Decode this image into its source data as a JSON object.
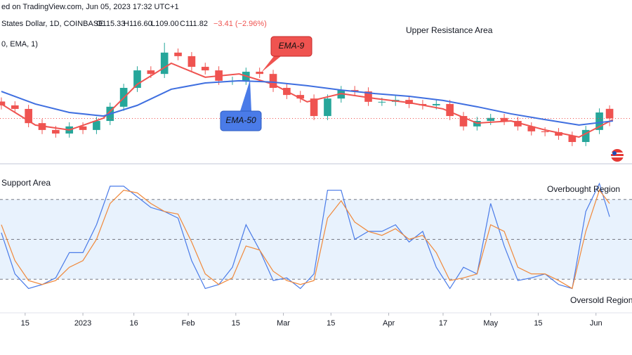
{
  "header": {
    "line1": "ed on TradingView.com, Jun 05, 2023 17:32 UTC+1",
    "symbol": "States Dollar, 1D, COINBASE",
    "ohlc": [
      "O115.33",
      "H116.60",
      "L109.00",
      "C111.82"
    ],
    "change": "−3.41 (−2.96%)",
    "indicator": "0, EMA, 1)"
  },
  "chart_data": [
    {
      "type": "candlestick",
      "x": [
        -24,
        -20,
        -16,
        -12,
        -8,
        -4,
        0,
        4,
        8,
        12,
        16,
        20,
        24,
        28,
        32,
        36,
        40,
        44,
        48,
        52,
        56,
        60,
        64,
        68,
        72,
        76,
        80,
        84,
        88,
        92,
        96,
        100,
        104,
        108,
        112,
        116,
        120,
        124,
        128,
        132,
        136,
        140,
        144,
        148,
        152,
        155
      ],
      "open": [
        118.0,
        116.6,
        115.3,
        110.1,
        107.6,
        106.3,
        108.9,
        107.6,
        110.9,
        116.1,
        123.0,
        129.4,
        128.1,
        135.9,
        134.6,
        130.7,
        129.4,
        125.6,
        125.6,
        128.9,
        128.1,
        123.0,
        120.4,
        119.1,
        112.7,
        119.1,
        122.2,
        121.7,
        117.9,
        117.9,
        118.6,
        117.1,
        116.6,
        117.1,
        112.7,
        108.9,
        110.9,
        112.0,
        110.9,
        108.9,
        107.1,
        106.8,
        105.5,
        103.2,
        107.6,
        115.33
      ],
      "high": [
        119.5,
        118.1,
        116.8,
        111.6,
        109.1,
        110.4,
        110.4,
        112.4,
        117.6,
        124.5,
        130.9,
        130.9,
        139.5,
        137.4,
        136.1,
        132.2,
        130.9,
        127.1,
        130.4,
        130.4,
        129.6,
        124.5,
        121.9,
        120.6,
        120.6,
        123.7,
        123.7,
        123.2,
        119.4,
        120.1,
        120.1,
        118.6,
        118.6,
        118.6,
        114.2,
        112.4,
        113.5,
        113.5,
        112.4,
        110.4,
        108.6,
        108.3,
        107.0,
        109.1,
        115.5,
        116.6
      ],
      "low": [
        115.1,
        113.8,
        108.6,
        106.1,
        104.8,
        104.8,
        106.1,
        106.1,
        109.4,
        114.6,
        121.5,
        126.6,
        126.6,
        133.1,
        129.2,
        127.9,
        124.1,
        124.1,
        124.1,
        126.6,
        121.5,
        118.9,
        117.6,
        111.2,
        111.2,
        117.6,
        120.2,
        116.4,
        116.4,
        116.4,
        115.6,
        115.1,
        115.1,
        111.2,
        107.4,
        107.4,
        109.4,
        109.4,
        107.4,
        105.6,
        105.3,
        104.0,
        101.7,
        101.7,
        106.1,
        109.0
      ],
      "close": [
        116.6,
        115.3,
        110.1,
        107.6,
        106.3,
        108.9,
        107.6,
        110.9,
        116.1,
        123.0,
        129.4,
        128.1,
        135.9,
        134.6,
        130.7,
        129.4,
        125.6,
        125.6,
        128.9,
        128.1,
        123.0,
        120.4,
        119.1,
        112.7,
        119.1,
        122.2,
        121.7,
        117.9,
        117.9,
        118.6,
        117.1,
        116.6,
        117.1,
        112.7,
        108.9,
        110.9,
        112.0,
        110.9,
        108.9,
        107.1,
        106.8,
        105.5,
        103.2,
        107.6,
        114.0,
        111.82
      ],
      "up_color": "#26a69a",
      "down_color": "#ef5350",
      "lines": [
        {
          "name": "EMA-9",
          "color": "#ef5350",
          "x": [
            -24,
            -14,
            -4,
            6,
            16,
            26,
            36,
            46,
            56,
            66,
            76,
            86,
            96,
            106,
            116,
            126,
            136,
            146,
            156
          ],
          "values": [
            117.1,
            109.4,
            107.6,
            111.9,
            124.3,
            132.0,
            126.9,
            128.1,
            124.3,
            117.9,
            120.9,
            119.1,
            117.6,
            115.3,
            110.1,
            110.9,
            107.6,
            105.0,
            111.4
          ]
        },
        {
          "name": "EMA-50",
          "color": "#3f6fe0",
          "x": [
            -24,
            -14,
            -4,
            6,
            16,
            26,
            36,
            46,
            56,
            66,
            76,
            86,
            96,
            106,
            116,
            126,
            136,
            146,
            156
          ],
          "values": [
            121.7,
            117.1,
            114.0,
            112.7,
            116.6,
            122.5,
            124.8,
            125.6,
            125.1,
            123.8,
            122.2,
            120.9,
            119.9,
            118.4,
            116.1,
            113.5,
            111.4,
            109.4,
            110.9
          ]
        }
      ],
      "annotations": [
        "Upper Resistance Area"
      ],
      "xlim": [
        -24.4,
        161.6
      ],
      "ylim": [
        96,
        150
      ]
    },
    {
      "type": "line",
      "x": [
        -24,
        -20,
        -16,
        -12,
        -8,
        -4,
        0,
        4,
        8,
        12,
        16,
        20,
        24,
        28,
        32,
        36,
        40,
        44,
        48,
        52,
        56,
        60,
        64,
        68,
        72,
        76,
        80,
        84,
        88,
        92,
        96,
        100,
        104,
        108,
        112,
        116,
        120,
        124,
        128,
        132,
        136,
        140,
        144,
        148,
        152,
        155
      ],
      "series": [
        {
          "color": "#4a7be8",
          "values": [
            55,
            24,
            13,
            16,
            21,
            40,
            40,
            61,
            90,
            90,
            82,
            74,
            71,
            66,
            34,
            13,
            16,
            29,
            61,
            42,
            19,
            21,
            13,
            24,
            87,
            87,
            50,
            56,
            56,
            61,
            48,
            56,
            29,
            13,
            29,
            24,
            77,
            45,
            19,
            21,
            24,
            16,
            13,
            71,
            92,
            67
          ]
        },
        {
          "color": "#f0883a",
          "values": [
            61,
            34,
            19,
            16,
            19,
            29,
            34,
            50,
            77,
            87,
            85,
            77,
            71,
            69,
            48,
            24,
            16,
            21,
            45,
            42,
            26,
            19,
            16,
            19,
            66,
            79,
            63,
            56,
            53,
            58,
            50,
            53,
            40,
            19,
            21,
            24,
            61,
            56,
            29,
            24,
            24,
            19,
            13,
            56,
            87,
            77
          ]
        }
      ],
      "levels": [
        20,
        50,
        80
      ],
      "annotations": [
        "Support Area",
        "Overbought Region",
        "Oversold Region"
      ],
      "xlim": [
        -24.4,
        161.6
      ],
      "ylim": [
        0,
        100
      ],
      "xticks": [
        {
          "value": -17,
          "label": "15"
        },
        {
          "value": 0,
          "label": "2023"
        },
        {
          "value": 15,
          "label": "16"
        },
        {
          "value": 31,
          "label": "Feb"
        },
        {
          "value": 45,
          "label": "15"
        },
        {
          "value": 59,
          "label": "Mar"
        },
        {
          "value": 73,
          "label": "15"
        },
        {
          "value": 90,
          "label": "Apr"
        },
        {
          "value": 106,
          "label": "17"
        },
        {
          "value": 120,
          "label": "May"
        },
        {
          "value": 134,
          "label": "15"
        },
        {
          "value": 151,
          "label": "Jun"
        }
      ]
    }
  ]
}
